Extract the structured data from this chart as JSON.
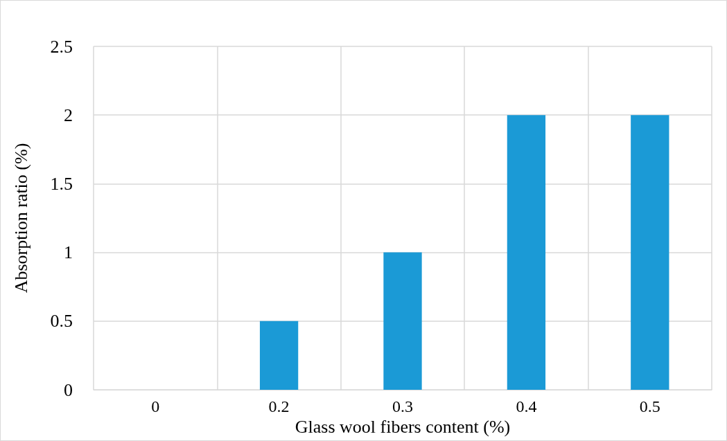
{
  "chart_data": {
    "type": "bar",
    "xlabel": "Glass wool fibers content (%)",
    "ylabel": "Absorption ratio (%)",
    "categories": [
      "0",
      "0.2",
      "0.3",
      "0.4",
      "0.5"
    ],
    "series": [
      {
        "color": "#1b9ad6",
        "values": [
          0,
          0.5,
          1,
          2,
          2
        ]
      }
    ],
    "ylim": [
      0,
      2.5
    ],
    "yticks": [
      0,
      0.5,
      1,
      1.5,
      2,
      2.5
    ],
    "grid": true
  }
}
